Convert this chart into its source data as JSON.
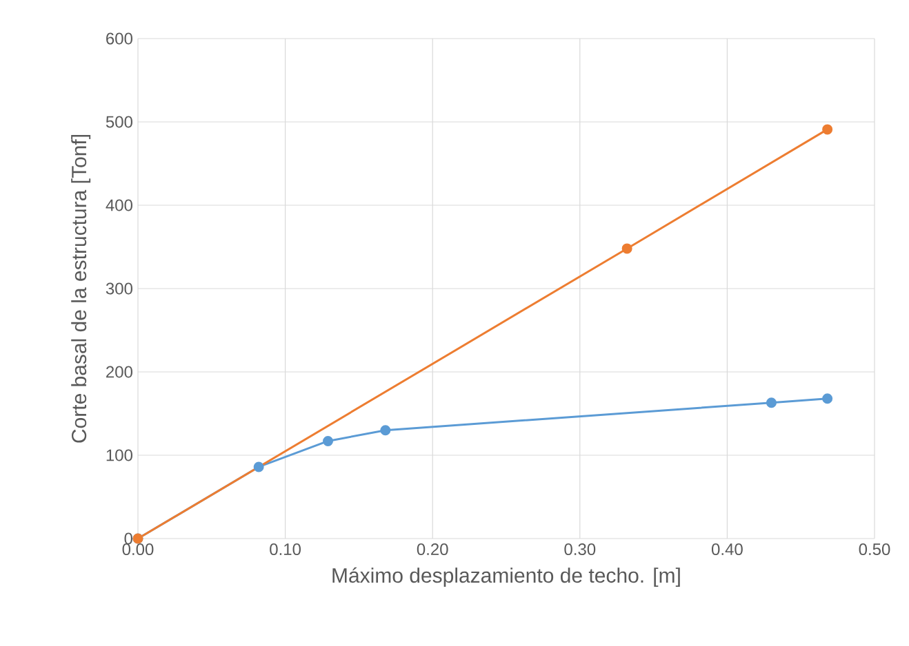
{
  "chart_data": {
    "type": "line",
    "xlabel": "Máximo desplazamiento de techo. [m]",
    "ylabel": "Corte basal de la estructura  [Tonf]",
    "series": [
      {
        "color": "#5b9bd5",
        "x": [
          0,
          0.082,
          0.129,
          0.168,
          0.43,
          0.468
        ],
        "values": [
          0,
          86,
          117,
          130,
          163,
          168
        ]
      },
      {
        "color": "#ed7d31",
        "x": [
          0,
          0.332,
          0.468
        ],
        "values": [
          0,
          348,
          491
        ]
      }
    ],
    "xlim": [
      0,
      0.5
    ],
    "xticks": [
      {
        "value": 0,
        "label": "0.00"
      },
      {
        "value": 0.1,
        "label": "0.10"
      },
      {
        "value": 0.2,
        "label": "0.20"
      },
      {
        "value": 0.3,
        "label": "0.30"
      },
      {
        "value": 0.4,
        "label": "0.40"
      },
      {
        "value": 0.5,
        "label": "0.50"
      }
    ],
    "ylim": [
      0,
      600
    ],
    "yticks": [
      0,
      100,
      200,
      300,
      400,
      500,
      600
    ],
    "grid": true,
    "marker": "circle",
    "line_style": "solid"
  }
}
